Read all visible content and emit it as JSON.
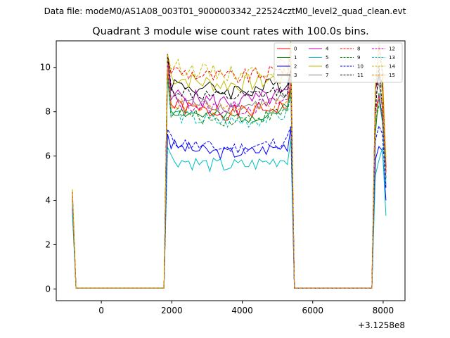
{
  "header": {
    "suptitle": "Data file: modeM0/AS1A08_003T01_9000003342_22524cztM0_level2_quad_clean.evt",
    "title": "Quadrant 3 module wise count rates with 100.0s bins."
  },
  "chart_data": {
    "type": "line",
    "title": "Quadrant 3 module wise count rates with 100.0s bins.",
    "xlabel": "",
    "ylabel": "",
    "x_offset_label": "+3.1258e8",
    "xlim": [
      -1280,
      8620
    ],
    "ylim": [
      -0.53,
      11.2
    ],
    "xticks": [
      0,
      2000,
      4000,
      6000,
      8000
    ],
    "xtick_labels": [
      "0",
      "2000",
      "4000",
      "6000",
      "8000"
    ],
    "yticks": [
      0,
      2,
      4,
      6,
      8,
      10
    ],
    "ytick_labels": [
      "0",
      "2",
      "4",
      "6",
      "8",
      "10"
    ],
    "grid": false,
    "legend": {
      "position": "top-right",
      "ncol": 4
    },
    "series": [
      {
        "name": "0",
        "color": "#ff0000",
        "dash": "solid",
        "base": 8.3,
        "amp": 0.35,
        "start": 4.3,
        "end": 4.6,
        "seed": 1
      },
      {
        "name": "1",
        "color": "#008000",
        "dash": "solid",
        "base": 8.1,
        "amp": 0.3,
        "start": 4.1,
        "end": 5.0,
        "seed": 2
      },
      {
        "name": "2",
        "color": "#0000ff",
        "dash": "solid",
        "base": 6.5,
        "amp": 0.3,
        "start": 3.6,
        "end": 4.0,
        "seed": 3
      },
      {
        "name": "3",
        "color": "#000000",
        "dash": "solid",
        "base": 9.3,
        "amp": 0.4,
        "start": 4.2,
        "end": 5.5,
        "seed": 4
      },
      {
        "name": "4",
        "color": "#bf00bf",
        "dash": "solid",
        "base": 8.8,
        "amp": 0.4,
        "start": 4.0,
        "end": 5.2,
        "seed": 5
      },
      {
        "name": "5",
        "color": "#00bfbf",
        "dash": "solid",
        "base": 5.9,
        "amp": 0.35,
        "start": 3.4,
        "end": 3.3,
        "seed": 6
      },
      {
        "name": "6",
        "color": "#bfbf00",
        "dash": "solid",
        "base": 9.6,
        "amp": 0.4,
        "start": 4.5,
        "end": 5.8,
        "seed": 7
      },
      {
        "name": "7",
        "color": "#808080",
        "dash": "solid",
        "base": 8.6,
        "amp": 0.3,
        "start": 4.3,
        "end": 5.6,
        "seed": 8
      },
      {
        "name": "8",
        "color": "#ff0000",
        "dash": "dashed",
        "base": 9.9,
        "amp": 0.35,
        "start": 4.4,
        "end": 5.4,
        "seed": 9
      },
      {
        "name": "9",
        "color": "#008000",
        "dash": "dashed",
        "base": 8.0,
        "amp": 0.3,
        "start": 4.0,
        "end": 4.8,
        "seed": 10
      },
      {
        "name": "10",
        "color": "#0000ff",
        "dash": "dashed",
        "base": 6.7,
        "amp": 0.3,
        "start": 3.7,
        "end": 4.5,
        "seed": 11
      },
      {
        "name": "11",
        "color": "#000000",
        "dash": "dashed",
        "base": 9.0,
        "amp": 0.3,
        "start": 4.2,
        "end": 5.3,
        "seed": 12
      },
      {
        "name": "12",
        "color": "#bf00bf",
        "dash": "dashed",
        "base": 8.5,
        "amp": 0.35,
        "start": 4.1,
        "end": 5.0,
        "seed": 13
      },
      {
        "name": "13",
        "color": "#00bfbf",
        "dash": "dashed",
        "base": 7.9,
        "amp": 0.35,
        "start": 3.9,
        "end": 4.7,
        "seed": 14
      },
      {
        "name": "14",
        "color": "#bfbf00",
        "dash": "dashed",
        "base": 10.1,
        "amp": 0.35,
        "start": 4.5,
        "end": 5.9,
        "seed": 15
      },
      {
        "name": "15",
        "color": "#ff8000",
        "dash": "dashed",
        "base": 8.4,
        "amp": 0.3,
        "start": 4.2,
        "end": 5.2,
        "seed": 16
      }
    ],
    "segments": [
      {
        "x0": -820,
        "x1": -720,
        "kind": "drop"
      },
      {
        "x0": -720,
        "x1": 1780,
        "kind": "zero"
      },
      {
        "x0": 1780,
        "x1": 1880,
        "kind": "rise"
      },
      {
        "x0": 1880,
        "x1": 5380,
        "kind": "plateau"
      },
      {
        "x0": 5380,
        "x1": 5480,
        "kind": "fall"
      },
      {
        "x0": 5480,
        "x1": 7680,
        "kind": "zero"
      },
      {
        "x0": 7680,
        "x1": 8080,
        "kind": "tail"
      }
    ]
  }
}
